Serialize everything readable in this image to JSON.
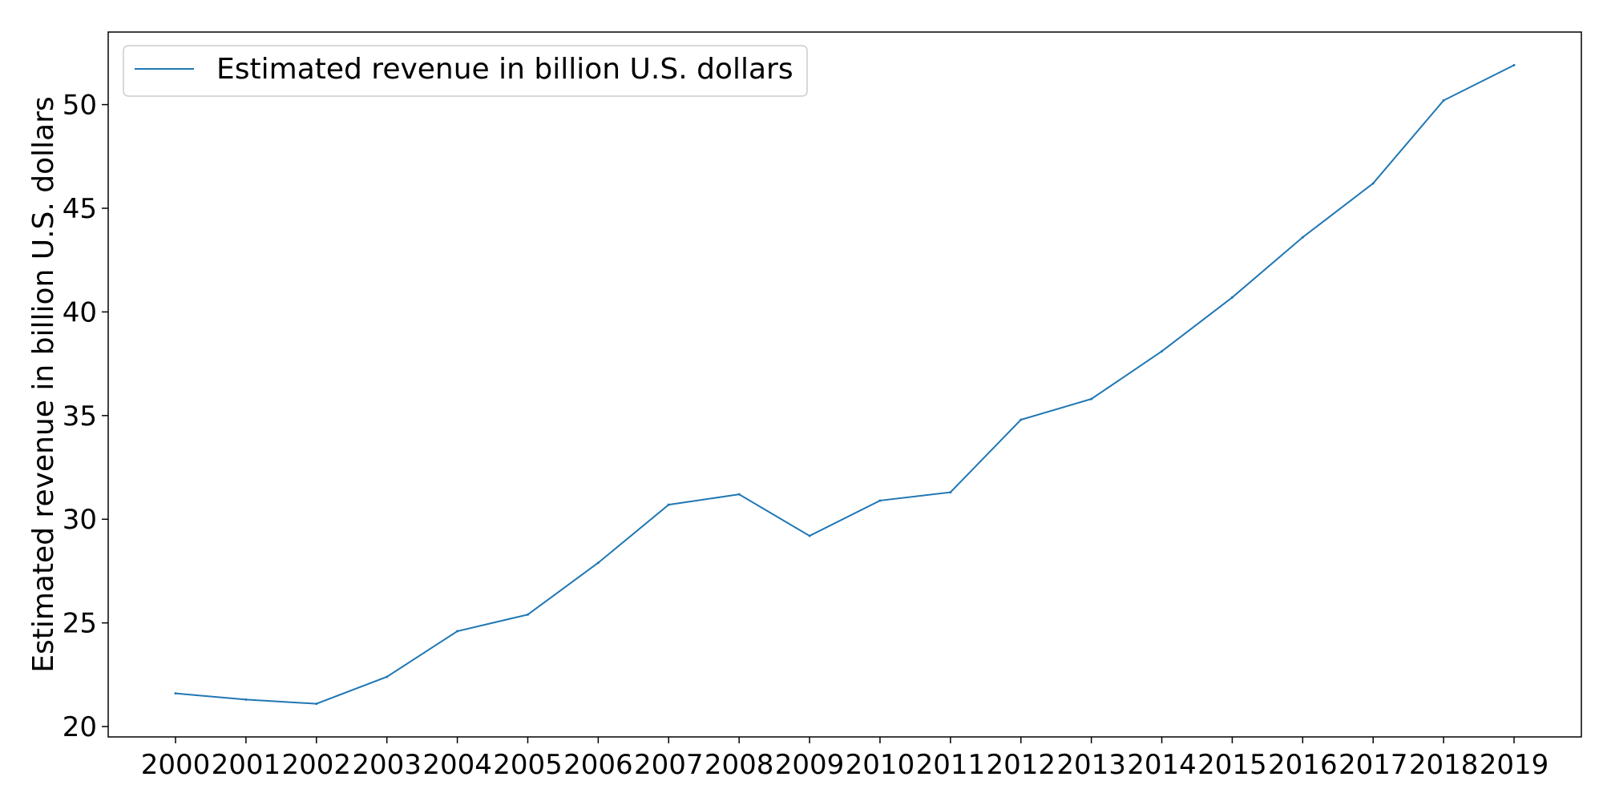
{
  "chart_data": {
    "type": "line",
    "title": "",
    "xlabel": "",
    "ylabel": "Estimated revenue in billion U.S. dollars",
    "categories": [
      "2000",
      "2001",
      "2002",
      "2003",
      "2004",
      "2005",
      "2006",
      "2007",
      "2008",
      "2009",
      "2010",
      "2011",
      "2012",
      "2013",
      "2014",
      "2015",
      "2016",
      "2017",
      "2018",
      "2019"
    ],
    "series": [
      {
        "name": "Estimated revenue in billion U.S. dollars",
        "color": "#1f77b4",
        "values": [
          21.6,
          21.3,
          21.1,
          22.4,
          24.6,
          25.4,
          27.9,
          30.7,
          31.2,
          29.2,
          30.9,
          31.3,
          34.8,
          35.8,
          38.1,
          40.7,
          43.6,
          46.2,
          50.2,
          51.9
        ]
      }
    ],
    "yticks": [
      20,
      25,
      30,
      35,
      40,
      45,
      50
    ],
    "ylim": [
      19.5,
      53.5
    ],
    "grid": false,
    "legend_position": "top-left"
  }
}
